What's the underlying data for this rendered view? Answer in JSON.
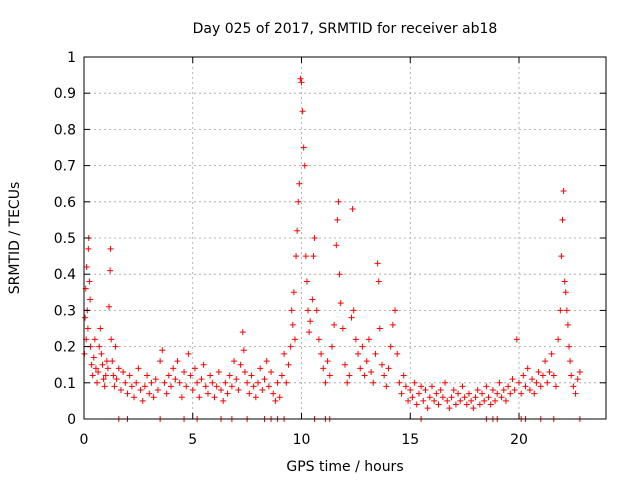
{
  "chart_data": {
    "type": "scatter",
    "title": "Day 025 of 2017, SRMTID for receiver ab18",
    "xlabel": "GPS time / hours",
    "ylabel": "SRMTID / TECUs",
    "xlim": [
      0,
      24
    ],
    "ylim": [
      0,
      1
    ],
    "grid": true,
    "marker": "+",
    "marker_color": "#ff0000",
    "x_ticks": [
      0,
      5,
      10,
      15,
      20
    ],
    "x_tick_labels": [
      "0",
      "5",
      "10",
      "15",
      "20"
    ],
    "y_ticks": [
      0,
      0.1,
      0.2,
      0.3,
      0.4,
      0.5,
      0.6,
      0.7,
      0.8,
      0.9,
      1
    ],
    "y_tick_labels": [
      "0",
      "0.1",
      "0.2",
      "0.3",
      "0.4",
      "0.5",
      "0.6",
      "0.7",
      "0.8",
      "0.9",
      "1"
    ],
    "series": [
      {
        "name": "SRMTID",
        "points": [
          [
            0.02,
            0.18
          ],
          [
            0.05,
            0.28
          ],
          [
            0.08,
            0.36
          ],
          [
            0.1,
            0.22
          ],
          [
            0.12,
            0.42
          ],
          [
            0.15,
            0.3
          ],
          [
            0.18,
            0.25
          ],
          [
            0.2,
            0.47
          ],
          [
            0.22,
            0.5
          ],
          [
            0.25,
            0.38
          ],
          [
            0.28,
            0.33
          ],
          [
            0.3,
            0.2
          ],
          [
            0.35,
            0.15
          ],
          [
            0.4,
            0.12
          ],
          [
            0.45,
            0.17
          ],
          [
            0.5,
            0.22
          ],
          [
            0.55,
            0.14
          ],
          [
            0.6,
            0.1
          ],
          [
            0.65,
            0.13
          ],
          [
            0.7,
            0.2
          ],
          [
            0.75,
            0.25
          ],
          [
            0.8,
            0.18
          ],
          [
            0.85,
            0.15
          ],
          [
            0.9,
            0.11
          ],
          [
            0.95,
            0.09
          ],
          [
            1.0,
            0.12
          ],
          [
            1.05,
            0.16
          ],
          [
            1.1,
            0.14
          ],
          [
            1.15,
            0.31
          ],
          [
            1.2,
            0.41
          ],
          [
            1.22,
            0.47
          ],
          [
            1.25,
            0.22
          ],
          [
            1.3,
            0.16
          ],
          [
            1.35,
            0.12
          ],
          [
            1.4,
            0.09
          ],
          [
            1.45,
            0.2
          ],
          [
            1.5,
            0.11
          ],
          [
            1.6,
            0.14
          ],
          [
            1.7,
            0.08
          ],
          [
            1.8,
            0.13
          ],
          [
            1.9,
            0.1
          ],
          [
            2.0,
            0.07
          ],
          [
            2.1,
            0.12
          ],
          [
            2.2,
            0.09
          ],
          [
            2.3,
            0.06
          ],
          [
            2.4,
            0.1
          ],
          [
            2.5,
            0.14
          ],
          [
            2.6,
            0.08
          ],
          [
            2.7,
            0.05
          ],
          [
            2.8,
            0.09
          ],
          [
            2.9,
            0.12
          ],
          [
            3.0,
            0.07
          ],
          [
            3.1,
            0.1
          ],
          [
            3.2,
            0.06
          ],
          [
            3.3,
            0.11
          ],
          [
            3.4,
            0.08
          ],
          [
            3.5,
            0.16
          ],
          [
            3.6,
            0.19
          ],
          [
            3.7,
            0.1
          ],
          [
            3.8,
            0.07
          ],
          [
            3.9,
            0.12
          ],
          [
            4.0,
            0.09
          ],
          [
            4.1,
            0.14
          ],
          [
            4.2,
            0.11
          ],
          [
            4.3,
            0.16
          ],
          [
            4.4,
            0.1
          ],
          [
            4.5,
            0.06
          ],
          [
            4.6,
            0.13
          ],
          [
            4.7,
            0.09
          ],
          [
            4.8,
            0.18
          ],
          [
            4.9,
            0.12
          ],
          [
            5.0,
            0.08
          ],
          [
            5.1,
            0.14
          ],
          [
            5.2,
            0.1
          ],
          [
            5.3,
            0.06
          ],
          [
            5.4,
            0.11
          ],
          [
            5.5,
            0.15
          ],
          [
            5.6,
            0.09
          ],
          [
            5.7,
            0.07
          ],
          [
            5.8,
            0.12
          ],
          [
            5.9,
            0.1
          ],
          [
            6.0,
            0.06
          ],
          [
            6.1,
            0.09
          ],
          [
            6.2,
            0.13
          ],
          [
            6.3,
            0.08
          ],
          [
            6.4,
            0.05
          ],
          [
            6.5,
            0.1
          ],
          [
            6.6,
            0.07
          ],
          [
            6.7,
            0.12
          ],
          [
            6.8,
            0.09
          ],
          [
            6.9,
            0.16
          ],
          [
            7.0,
            0.11
          ],
          [
            7.1,
            0.08
          ],
          [
            7.2,
            0.15
          ],
          [
            7.3,
            0.24
          ],
          [
            7.35,
            0.19
          ],
          [
            7.4,
            0.13
          ],
          [
            7.5,
            0.1
          ],
          [
            7.6,
            0.07
          ],
          [
            7.7,
            0.12
          ],
          [
            7.8,
            0.09
          ],
          [
            7.9,
            0.06
          ],
          [
            8.0,
            0.1
          ],
          [
            8.1,
            0.14
          ],
          [
            8.2,
            0.08
          ],
          [
            8.3,
            0.11
          ],
          [
            8.4,
            0.16
          ],
          [
            8.5,
            0.09
          ],
          [
            8.6,
            0.13
          ],
          [
            8.7,
            0.07
          ],
          [
            8.8,
            0.05
          ],
          [
            8.9,
            0.1
          ],
          [
            9.0,
            0.06
          ],
          [
            9.1,
            0.12
          ],
          [
            9.2,
            0.18
          ],
          [
            9.3,
            0.1
          ],
          [
            9.4,
            0.15
          ],
          [
            9.5,
            0.2
          ],
          [
            9.55,
            0.3
          ],
          [
            9.6,
            0.26
          ],
          [
            9.65,
            0.35
          ],
          [
            9.7,
            0.22
          ],
          [
            9.75,
            0.45
          ],
          [
            9.8,
            0.52
          ],
          [
            9.85,
            0.6
          ],
          [
            9.9,
            0.65
          ],
          [
            9.95,
            0.94
          ],
          [
            10.0,
            0.93
          ],
          [
            10.05,
            0.85
          ],
          [
            10.1,
            0.75
          ],
          [
            10.15,
            0.7
          ],
          [
            10.2,
            0.45
          ],
          [
            10.25,
            0.38
          ],
          [
            10.3,
            0.3
          ],
          [
            10.35,
            0.24
          ],
          [
            10.4,
            0.27
          ],
          [
            10.5,
            0.33
          ],
          [
            10.55,
            0.45
          ],
          [
            10.6,
            0.5
          ],
          [
            10.7,
            0.3
          ],
          [
            10.8,
            0.22
          ],
          [
            10.9,
            0.18
          ],
          [
            11.0,
            0.14
          ],
          [
            11.1,
            0.1
          ],
          [
            11.2,
            0.16
          ],
          [
            11.3,
            0.12
          ],
          [
            11.4,
            0.2
          ],
          [
            11.5,
            0.26
          ],
          [
            11.6,
            0.48
          ],
          [
            11.65,
            0.55
          ],
          [
            11.7,
            0.6
          ],
          [
            11.75,
            0.4
          ],
          [
            11.8,
            0.32
          ],
          [
            11.9,
            0.25
          ],
          [
            12.0,
            0.15
          ],
          [
            12.1,
            0.1
          ],
          [
            12.2,
            0.12
          ],
          [
            12.3,
            0.28
          ],
          [
            12.35,
            0.58
          ],
          [
            12.4,
            0.3
          ],
          [
            12.5,
            0.22
          ],
          [
            12.6,
            0.18
          ],
          [
            12.7,
            0.14
          ],
          [
            12.8,
            0.2
          ],
          [
            12.9,
            0.12
          ],
          [
            13.0,
            0.16
          ],
          [
            13.1,
            0.22
          ],
          [
            13.2,
            0.13
          ],
          [
            13.3,
            0.1
          ],
          [
            13.4,
            0.18
          ],
          [
            13.5,
            0.43
          ],
          [
            13.55,
            0.38
          ],
          [
            13.6,
            0.25
          ],
          [
            13.7,
            0.15
          ],
          [
            13.8,
            0.12
          ],
          [
            13.9,
            0.09
          ],
          [
            14.0,
            0.14
          ],
          [
            14.1,
            0.2
          ],
          [
            14.2,
            0.26
          ],
          [
            14.3,
            0.3
          ],
          [
            14.4,
            0.18
          ],
          [
            14.5,
            0.1
          ],
          [
            14.6,
            0.07
          ],
          [
            14.7,
            0.12
          ],
          [
            14.8,
            0.09
          ],
          [
            14.9,
            0.05
          ],
          [
            15.0,
            0.08
          ],
          [
            15.1,
            0.06
          ],
          [
            15.2,
            0.1
          ],
          [
            15.3,
            0.04
          ],
          [
            15.4,
            0.07
          ],
          [
            15.5,
            0.09
          ],
          [
            15.6,
            0.05
          ],
          [
            15.7,
            0.08
          ],
          [
            15.8,
            0.03
          ],
          [
            15.9,
            0.06
          ],
          [
            16.0,
            0.09
          ],
          [
            16.1,
            0.05
          ],
          [
            16.2,
            0.07
          ],
          [
            16.3,
            0.04
          ],
          [
            16.4,
            0.08
          ],
          [
            16.5,
            0.06
          ],
          [
            16.6,
            0.1
          ],
          [
            16.7,
            0.05
          ],
          [
            16.8,
            0.03
          ],
          [
            16.9,
            0.06
          ],
          [
            17.0,
            0.08
          ],
          [
            17.1,
            0.04
          ],
          [
            17.2,
            0.07
          ],
          [
            17.3,
            0.05
          ],
          [
            17.4,
            0.09
          ],
          [
            17.5,
            0.06
          ],
          [
            17.6,
            0.04
          ],
          [
            17.7,
            0.07
          ],
          [
            17.8,
            0.05
          ],
          [
            17.9,
            0.03
          ],
          [
            18.0,
            0.06
          ],
          [
            18.1,
            0.08
          ],
          [
            18.2,
            0.04
          ],
          [
            18.3,
            0.07
          ],
          [
            18.4,
            0.05
          ],
          [
            18.5,
            0.09
          ],
          [
            18.6,
            0.06
          ],
          [
            18.7,
            0.04
          ],
          [
            18.8,
            0.08
          ],
          [
            18.9,
            0.05
          ],
          [
            19.0,
            0.07
          ],
          [
            19.1,
            0.1
          ],
          [
            19.2,
            0.06
          ],
          [
            19.3,
            0.08
          ],
          [
            19.4,
            0.05
          ],
          [
            19.5,
            0.09
          ],
          [
            19.6,
            0.07
          ],
          [
            19.7,
            0.11
          ],
          [
            19.8,
            0.08
          ],
          [
            19.9,
            0.22
          ],
          [
            20.0,
            0.1
          ],
          [
            20.1,
            0.07
          ],
          [
            20.2,
            0.12
          ],
          [
            20.3,
            0.09
          ],
          [
            20.4,
            0.14
          ],
          [
            20.5,
            0.08
          ],
          [
            20.6,
            0.11
          ],
          [
            20.7,
            0.07
          ],
          [
            20.8,
            0.1
          ],
          [
            20.9,
            0.13
          ],
          [
            21.0,
            0.09
          ],
          [
            21.1,
            0.12
          ],
          [
            21.2,
            0.16
          ],
          [
            21.3,
            0.1
          ],
          [
            21.4,
            0.13
          ],
          [
            21.5,
            0.18
          ],
          [
            21.6,
            0.12
          ],
          [
            21.7,
            0.09
          ],
          [
            21.8,
            0.22
          ],
          [
            21.9,
            0.3
          ],
          [
            21.95,
            0.45
          ],
          [
            22.0,
            0.55
          ],
          [
            22.05,
            0.63
          ],
          [
            22.1,
            0.38
          ],
          [
            22.15,
            0.35
          ],
          [
            22.2,
            0.3
          ],
          [
            22.25,
            0.26
          ],
          [
            22.3,
            0.2
          ],
          [
            22.35,
            0.16
          ],
          [
            22.4,
            0.12
          ],
          [
            22.5,
            0.09
          ],
          [
            22.6,
            0.07
          ],
          [
            22.7,
            0.11
          ],
          [
            22.8,
            0.13
          ],
          [
            1.6,
            0
          ],
          [
            2.0,
            0
          ],
          [
            3.5,
            0
          ],
          [
            4.6,
            0
          ],
          [
            5.2,
            0
          ],
          [
            6.3,
            0
          ],
          [
            6.8,
            0
          ],
          [
            7.5,
            0
          ],
          [
            8.3,
            0
          ],
          [
            8.6,
            0
          ],
          [
            8.9,
            0
          ],
          [
            9.2,
            0
          ],
          [
            10.6,
            0
          ],
          [
            11.1,
            0
          ],
          [
            11.3,
            0
          ],
          [
            15.5,
            0
          ],
          [
            18.5,
            0
          ],
          [
            18.8,
            0
          ],
          [
            19.0,
            0
          ],
          [
            20.1,
            0
          ],
          [
            20.3,
            0
          ],
          [
            21.0,
            0
          ],
          [
            21.6,
            0
          ],
          [
            22.8,
            0
          ]
        ]
      }
    ]
  }
}
